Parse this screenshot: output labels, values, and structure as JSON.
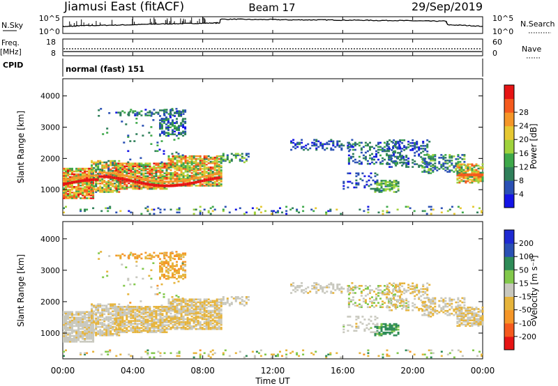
{
  "header": {
    "station": "Jiamusi East (fitACF)",
    "beam": "Beam 17",
    "date": "29/Sep/2019"
  },
  "colors": {
    "power": [
      "#1414e6",
      "#2a50b4",
      "#2f7f5a",
      "#3ea84a",
      "#9fd23c",
      "#e6c832",
      "#f59628",
      "#f55a1e",
      "#e61414"
    ],
    "velocity": [
      "#e61414",
      "#f55a1e",
      "#f59628",
      "#e6b43c",
      "#c8c8be",
      "#82c84b",
      "#2e8b57",
      "#2a50b4",
      "#1e2ad2"
    ],
    "trace": "#000000",
    "frame": "#000000"
  },
  "chart_data": [
    {
      "type": "line",
      "name": "nsky-nsearch",
      "left_label": "N.Sky",
      "right_label": "N.Search",
      "left_ticks": [
        "10^5",
        "10^0"
      ],
      "right_ticks": [
        "10^5",
        "10^0"
      ],
      "x_hours": [
        0,
        0.5,
        1,
        2,
        3,
        4,
        5,
        6,
        7,
        8,
        8.7,
        9,
        10,
        11,
        12,
        13,
        14,
        15,
        16,
        17,
        18,
        19,
        20,
        21,
        21.9,
        22,
        23,
        24
      ],
      "y_log": [
        2.0,
        2.1,
        2.3,
        2.4,
        2.5,
        2.6,
        2.8,
        2.9,
        3.0,
        3.1,
        3.2,
        4.4,
        4.4,
        4.3,
        4.3,
        4.2,
        4.2,
        4.2,
        4.1,
        4.1,
        4.0,
        4.0,
        3.9,
        3.8,
        3.8,
        2.6,
        2.4,
        2.1
      ],
      "ylim": [
        0,
        5
      ]
    },
    {
      "type": "line",
      "name": "freq-nave",
      "left_label_1": "Freq.",
      "left_label_2": "[MHz]",
      "left_label_3": "CPID",
      "right_label": "Nave",
      "left_ticks": [
        "18",
        "8"
      ],
      "right_ticks": [
        "60",
        "0"
      ],
      "frequency_mhz": 10.5,
      "nave": 25,
      "cpid_text": "normal (fast) 151"
    },
    {
      "type": "heatmap",
      "name": "power",
      "ylabel": "Slant Range [km]",
      "colorbar_label": "Power [dB]",
      "colorbar_ticks": [
        "4",
        "8",
        "12",
        "16",
        "20",
        "24",
        "28"
      ],
      "yticks": [
        "1000",
        "2000",
        "3000",
        "4000"
      ],
      "ylim": [
        180,
        4550
      ],
      "xlim_hours": [
        0,
        24
      ]
    },
    {
      "type": "heatmap",
      "name": "velocity",
      "ylabel": "Slant Range [km]",
      "colorbar_label": "Velocity [m s⁻¹]",
      "colorbar_ticks": [
        "-200",
        "-100",
        "-50",
        "-15",
        "15",
        "50",
        "100",
        "200"
      ],
      "yticks": [
        "1000",
        "2000",
        "3000",
        "4000"
      ],
      "ylim": [
        180,
        4550
      ],
      "xlim_hours": [
        0,
        24
      ]
    }
  ],
  "time_axis": {
    "ticks": [
      "00:00",
      "04:00",
      "08:00",
      "12:00",
      "16:00",
      "20:00",
      "00:00"
    ],
    "xlabel": "Time UT"
  },
  "scatter_regions": [
    {
      "t0": 0.0,
      "t1": 1.8,
      "r0": 700,
      "r1": 1650,
      "density": 0.85,
      "power": [
        12,
        30
      ],
      "vel": [
        -20,
        15
      ]
    },
    {
      "t0": 1.6,
      "t1": 3.2,
      "r0": 900,
      "r1": 1900,
      "density": 0.75,
      "power": [
        8,
        26
      ],
      "vel": [
        -30,
        10
      ]
    },
    {
      "t0": 3.0,
      "t1": 6.0,
      "r0": 1000,
      "r1": 1850,
      "density": 0.8,
      "power": [
        10,
        30
      ],
      "vel": [
        -40,
        10
      ]
    },
    {
      "t0": 6.0,
      "t1": 9.0,
      "r0": 1100,
      "r1": 2050,
      "density": 0.8,
      "power": [
        10,
        28
      ],
      "vel": [
        -45,
        10
      ]
    },
    {
      "t0": 9.0,
      "t1": 10.6,
      "r0": 1850,
      "r1": 2150,
      "density": 0.45,
      "power": [
        6,
        18
      ],
      "vel": [
        -20,
        10
      ]
    },
    {
      "t0": 2.0,
      "t1": 7.0,
      "r0": 1850,
      "r1": 3600,
      "density": 0.04,
      "power": [
        4,
        14
      ],
      "vel": [
        -60,
        60
      ]
    },
    {
      "t0": 5.5,
      "t1": 7.0,
      "r0": 2700,
      "r1": 3550,
      "density": 0.45,
      "power": [
        4,
        14
      ],
      "vel": [
        -80,
        -10
      ]
    },
    {
      "t0": 3.0,
      "t1": 7.0,
      "r0": 3350,
      "r1": 3550,
      "density": 0.35,
      "power": [
        4,
        14
      ],
      "vel": [
        -90,
        -20
      ]
    },
    {
      "t0": 0.0,
      "t1": 24.0,
      "r0": 200,
      "r1": 450,
      "density": 0.12,
      "power": [
        4,
        20
      ],
      "vel": [
        -60,
        60
      ]
    },
    {
      "t0": 13.0,
      "t1": 16.5,
      "r0": 2250,
      "r1": 2600,
      "density": 0.35,
      "power": [
        4,
        10
      ],
      "vel": [
        -20,
        10
      ]
    },
    {
      "t0": 16.3,
      "t1": 19.5,
      "r0": 1800,
      "r1": 2500,
      "density": 0.35,
      "power": [
        4,
        14
      ],
      "vel": [
        -30,
        30
      ]
    },
    {
      "t0": 17.8,
      "t1": 19.2,
      "r0": 900,
      "r1": 1300,
      "density": 0.6,
      "power": [
        8,
        18
      ],
      "vel": [
        40,
        80
      ]
    },
    {
      "t0": 18.5,
      "t1": 21.0,
      "r0": 1700,
      "r1": 2600,
      "density": 0.35,
      "power": [
        4,
        12
      ],
      "vel": [
        -40,
        20
      ]
    },
    {
      "t0": 20.5,
      "t1": 23.0,
      "r0": 1500,
      "r1": 2100,
      "density": 0.4,
      "power": [
        6,
        16
      ],
      "vel": [
        -30,
        10
      ]
    },
    {
      "t0": 22.5,
      "t1": 24.0,
      "r0": 1200,
      "r1": 1800,
      "density": 0.7,
      "power": [
        10,
        26
      ],
      "vel": [
        -40,
        10
      ]
    },
    {
      "t0": 16.0,
      "t1": 18.0,
      "r0": 1000,
      "r1": 1500,
      "density": 0.2,
      "power": [
        4,
        10
      ],
      "vel": [
        -20,
        20
      ]
    }
  ]
}
